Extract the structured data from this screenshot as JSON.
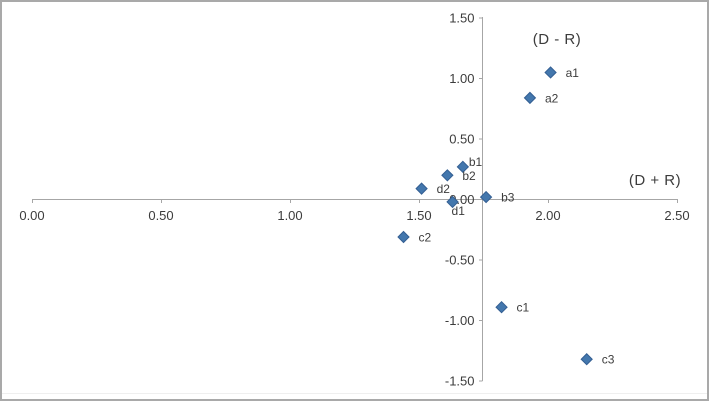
{
  "frame": {
    "background": "#ffffff",
    "border_color": "#a9a9a9"
  },
  "chart_data": {
    "type": "scatter",
    "title": "",
    "legend": "none",
    "grid": false,
    "x_axis": {
      "title": "(D + R)",
      "tick_labels": [
        "0.00",
        "0.50",
        "1.00",
        "1.50",
        "2.00",
        "2.50"
      ],
      "range": [
        0,
        2.5
      ],
      "crosses_y_at": 0
    },
    "y_axis": {
      "title": "(D - R)",
      "tick_labels": [
        "1.50",
        "1.00",
        "0.50",
        "0.00",
        "-0.50",
        "-1.00",
        "-1.50"
      ],
      "range": [
        -1.5,
        1.5
      ],
      "crosses_x_at": 1.75
    },
    "marker": {
      "shape": "diamond",
      "fill": "#4377ad",
      "stroke": "#335e92",
      "size": 11
    },
    "axis_color": "#a6a6a6",
    "text_color": "#3c3c3c",
    "points": [
      {
        "label": "a1",
        "x": 2.01,
        "y": 1.05,
        "label_side": "right"
      },
      {
        "label": "a2",
        "x": 1.93,
        "y": 0.84,
        "label_side": "right"
      },
      {
        "label": "b1",
        "x": 1.67,
        "y": 0.27,
        "label_side": "above-right"
      },
      {
        "label": "b2",
        "x": 1.61,
        "y": 0.2,
        "label_side": "right"
      },
      {
        "label": "b3",
        "x": 1.76,
        "y": 0.02,
        "label_side": "right"
      },
      {
        "label": "c1",
        "x": 1.82,
        "y": -0.89,
        "label_side": "right"
      },
      {
        "label": "c2",
        "x": 1.44,
        "y": -0.31,
        "label_side": "right"
      },
      {
        "label": "c3",
        "x": 2.15,
        "y": -1.32,
        "label_side": "right"
      },
      {
        "label": "d1",
        "x": 1.63,
        "y": -0.02,
        "label_side": "below"
      },
      {
        "label": "d2",
        "x": 1.51,
        "y": 0.09,
        "label_side": "right"
      }
    ]
  }
}
